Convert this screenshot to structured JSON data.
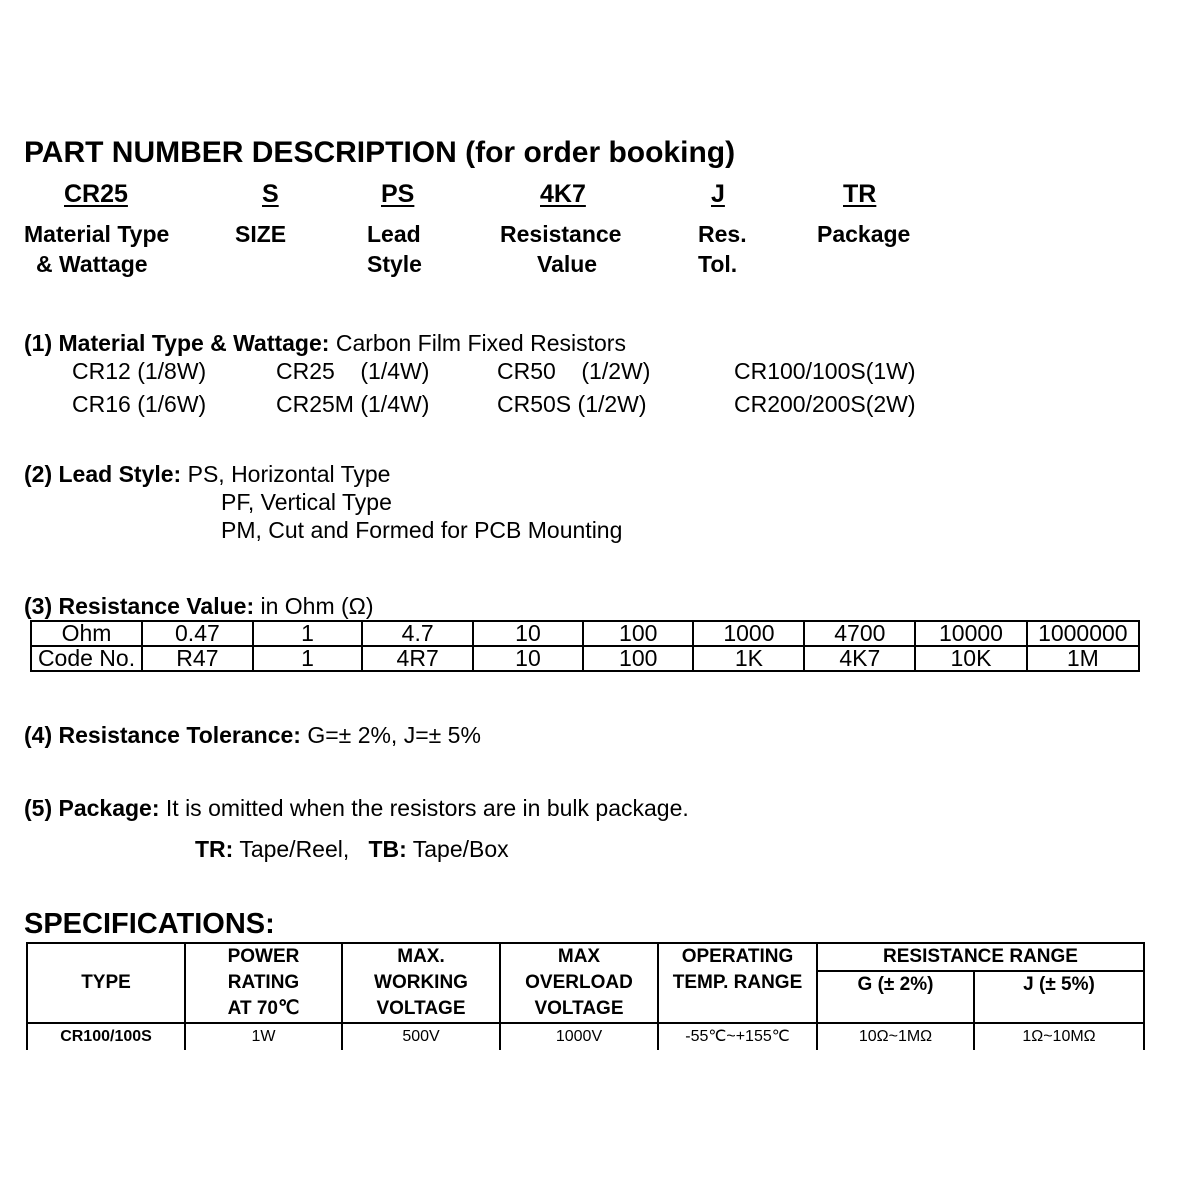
{
  "title": "PART NUMBER DESCRIPTION (for order booking)",
  "codes": [
    {
      "code": "CR25",
      "label1": "Material Type",
      "label2": "& Wattage"
    },
    {
      "code": "S",
      "label1": "SIZE",
      "label2": ""
    },
    {
      "code": "PS",
      "label1": "Lead",
      "label2": "Style"
    },
    {
      "code": "4K7",
      "label1": "Resistance",
      "label2": "Value"
    },
    {
      "code": "J",
      "label1": "Res.",
      "label2": "Tol."
    },
    {
      "code": "TR",
      "label1": "Package",
      "label2": ""
    }
  ],
  "s1": {
    "head": "(1) Material Type & Wattage:",
    "text": "Carbon Film Fixed Resistors",
    "items": [
      "CR12 (1/8W)",
      "CR25    (1/4W)",
      "CR50    (1/2W)",
      "CR100/100S(1W)",
      "CR16 (1/6W)",
      "CR25M (1/4W)",
      "CR50S (1/2W)",
      "CR200/200S(2W)"
    ]
  },
  "s2": {
    "head": "(2) Lead Style:",
    "lines": [
      "PS, Horizontal Type",
      "PF, Vertical Type",
      "PM, Cut and Formed for PCB Mounting"
    ]
  },
  "s3": {
    "head": "(3) Resistance Value:",
    "text": "in Ohm (Ω)",
    "ohm": [
      "Ohm",
      "0.47",
      "1",
      "4.7",
      "10",
      "100",
      "1000",
      "4700",
      "10000",
      "1000000"
    ],
    "code": [
      "Code No.",
      "R47",
      "1",
      "4R7",
      "10",
      "100",
      "1K",
      "4K7",
      "10K",
      "1M"
    ]
  },
  "s4": {
    "head": "(4) Resistance Tolerance:",
    "text": "G=± 2%, J=± 5%"
  },
  "s5": {
    "head": "(5) Package:",
    "text": "It is omitted when the resistors are in bulk package.",
    "tr_label": "TR:",
    "tr": "Tape/Reel,",
    "tb_label": "TB:",
    "tb": "Tape/Box"
  },
  "spec": {
    "title": "SPECIFICATIONS:",
    "headers": [
      "TYPE",
      "POWER",
      "RATING",
      "AT 70℃",
      "MAX.",
      "WORKING",
      "VOLTAGE",
      "MAX",
      "OVERLOAD",
      "VOLTAGE",
      "OPERATING",
      "TEMP. RANGE",
      "RESISTANCE RANGE",
      "G (± 2%)",
      "J (± 5%)"
    ],
    "row": [
      "CR100/100S",
      "1W",
      "500V",
      "1000V",
      "-55℃~+155℃",
      "10Ω~1MΩ",
      "1Ω~10MΩ"
    ]
  }
}
